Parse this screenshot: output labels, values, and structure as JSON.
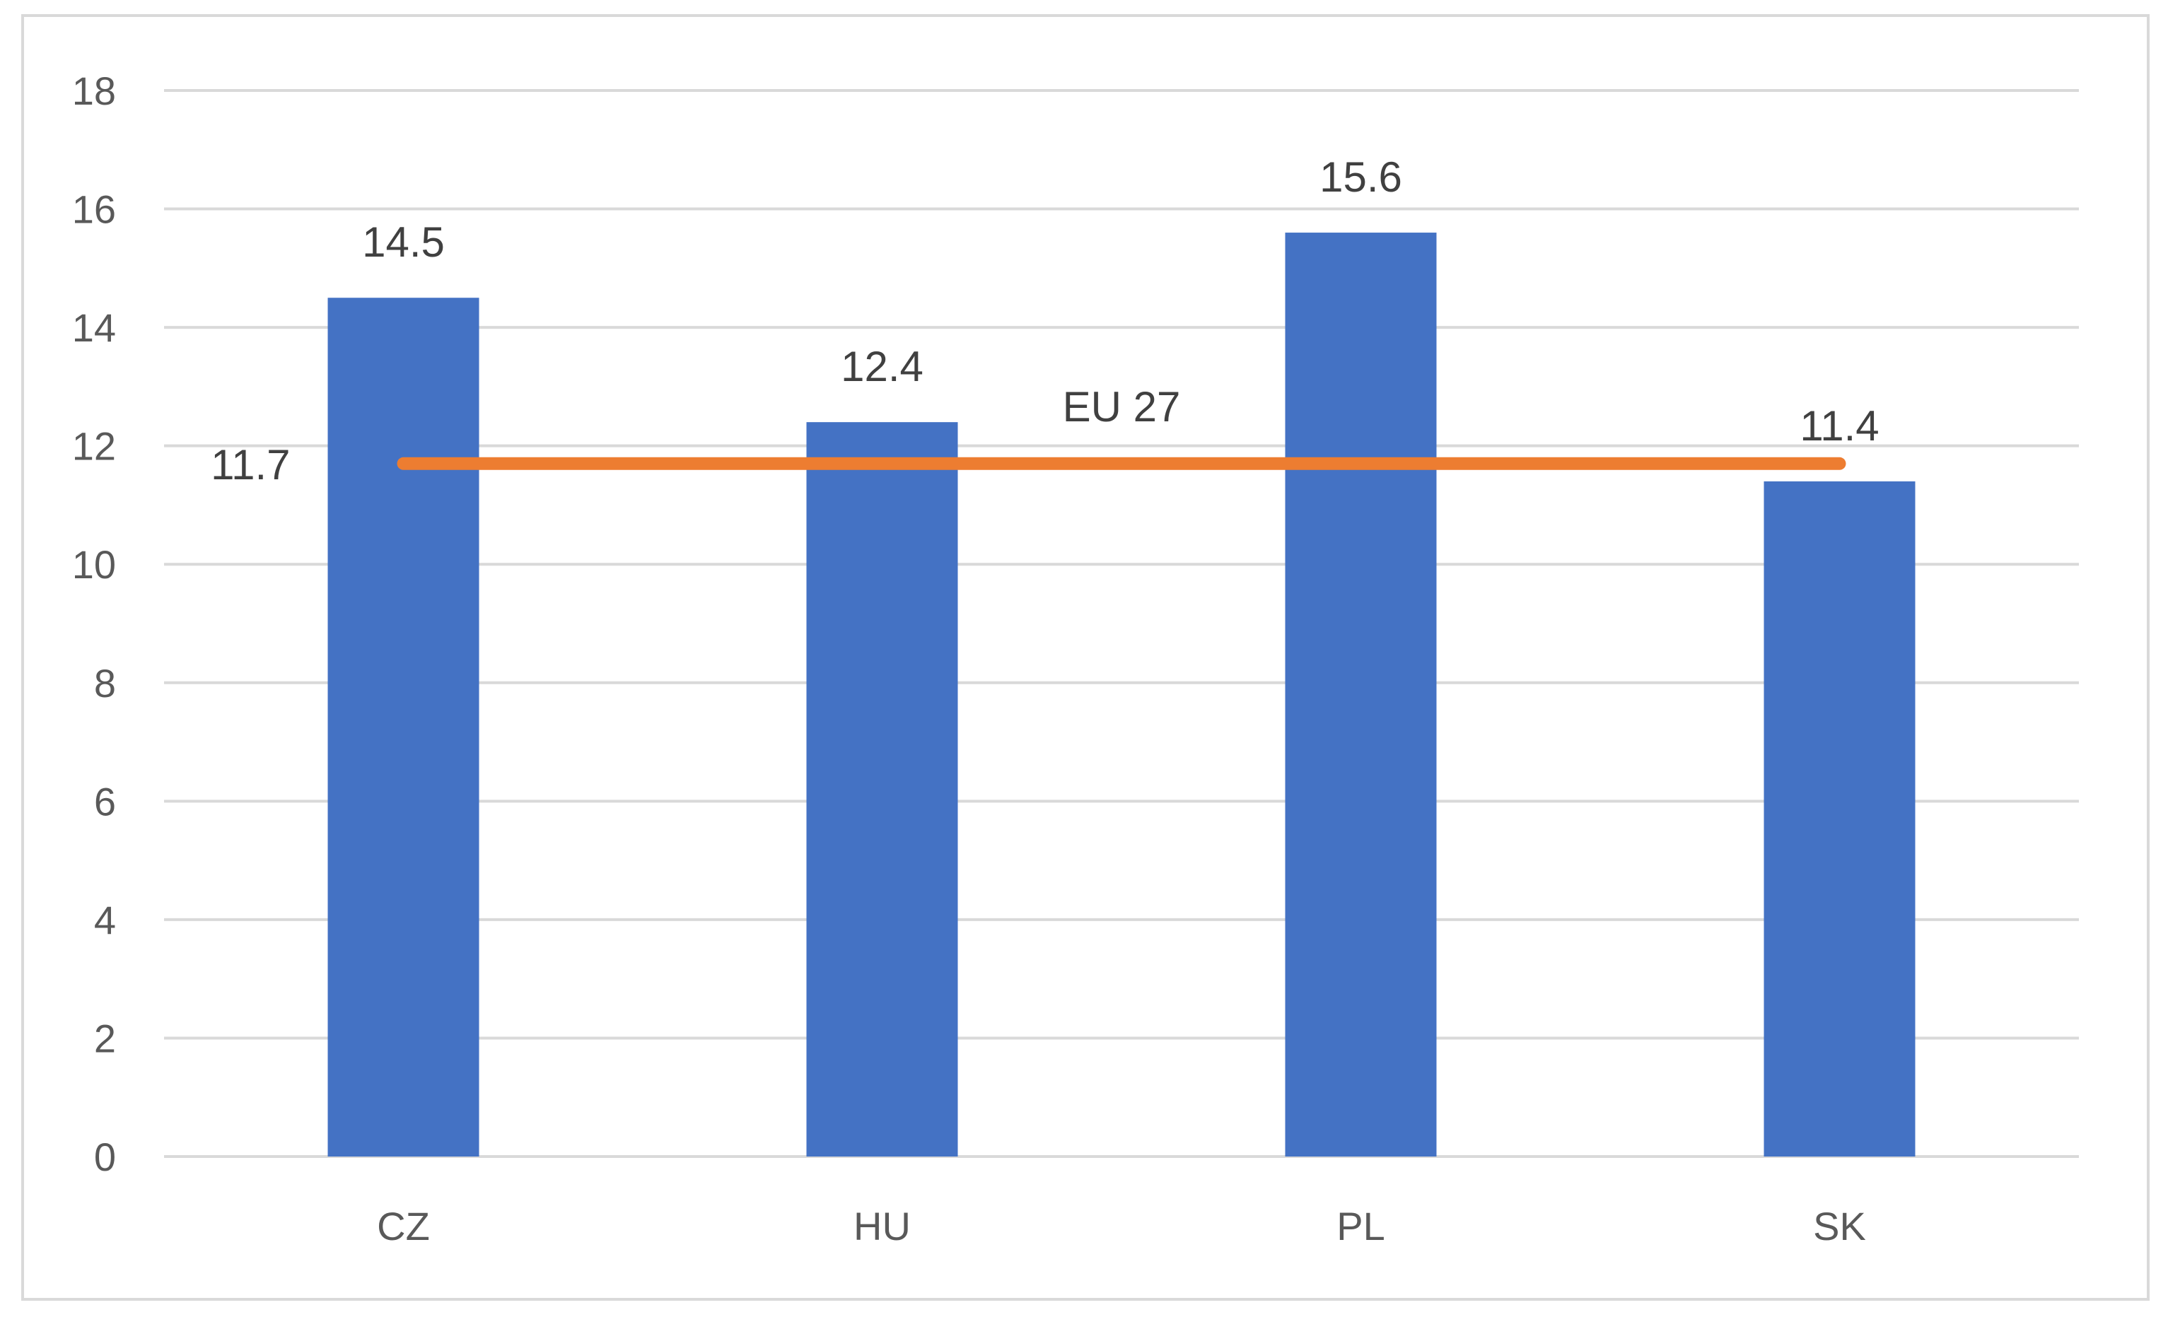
{
  "chart_data": {
    "type": "bar",
    "categories": [
      "CZ",
      "HU",
      "PL",
      "SK"
    ],
    "series": [
      {
        "values": [
          14.5,
          12.4,
          15.6,
          11.4
        ],
        "color": "#4472c4",
        "type": "bar"
      },
      {
        "values": [
          11.7,
          11.7,
          11.7,
          11.7
        ],
        "color": "#ed7d31",
        "type": "line"
      }
    ],
    "data_labels": [
      "14.5",
      "12.4",
      "15.6",
      "11.4"
    ],
    "line_label_value": "11.7",
    "line_annotation": "EU 27",
    "ylim": [
      0,
      18
    ],
    "yticks": [
      "0",
      "2",
      "4",
      "6",
      "8",
      "10",
      "12",
      "14",
      "16",
      "18"
    ],
    "grid": true,
    "legend": "none",
    "title": "",
    "xlabel": "",
    "ylabel": ""
  }
}
